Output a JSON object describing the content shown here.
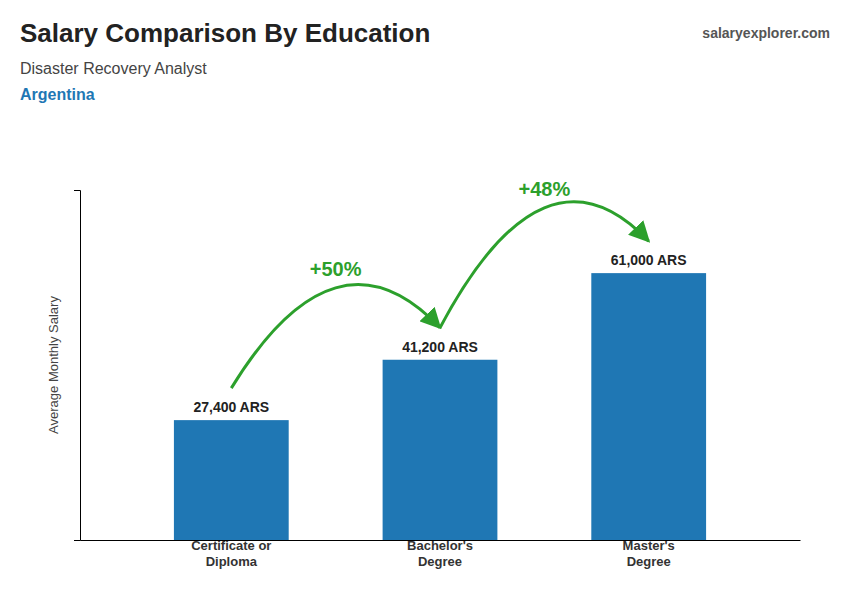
{
  "chart_data": {
    "type": "bar",
    "title": "Salary Comparison By Education",
    "subtitle": "Disaster Recovery Analyst",
    "annotations": [
      "Argentina",
      "salaryexplorer.com"
    ],
    "ylabel": "Average Monthly Salary",
    "categories": [
      "Certificate or\nDiploma",
      "Bachelor's\nDegree",
      "Master's\nDegree"
    ],
    "values": [
      27400,
      41200,
      61000
    ],
    "value_labels": [
      "27,400 ARS",
      "41,200 ARS",
      "61,000 ARS"
    ],
    "data_labels": true,
    "changes": [
      50,
      48
    ],
    "change_labels": [
      "+50%",
      "+48%"
    ],
    "ylim": [
      0,
      80000
    ],
    "tick_labels": "x",
    "grid": false
  }
}
